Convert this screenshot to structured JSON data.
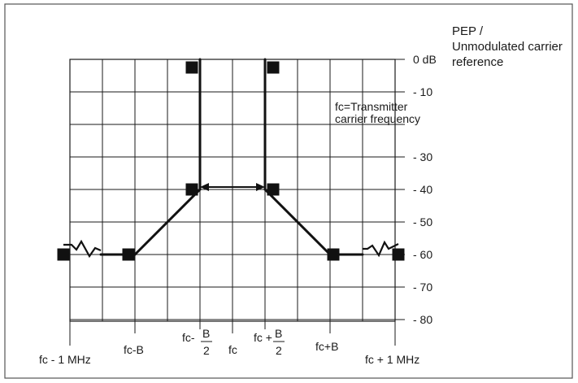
{
  "y_axis": {
    "ticks": [
      {
        "value": 0,
        "label": "0 dB"
      },
      {
        "value": -10,
        "label": "- 10"
      },
      {
        "value": -20,
        "label": ""
      },
      {
        "value": -30,
        "label": "- 30"
      },
      {
        "value": -40,
        "label": "- 40"
      },
      {
        "value": -50,
        "label": "- 50"
      },
      {
        "value": -60,
        "label": "- 60"
      },
      {
        "value": -70,
        "label": "- 70"
      },
      {
        "value": -80,
        "label": "- 80"
      }
    ]
  },
  "legend": {
    "pep_line1": "PEP /",
    "pep_line2": "Unmodulated carrier",
    "pep_line3": "reference",
    "fc_line1": "fc=Transmitter",
    "fc_line2": "carrier frequency"
  },
  "x_labels": {
    "fc_minus_1mhz": "fc - 1 MHz",
    "fc_minus_b": "fc-B",
    "fc_minus_half_b_prefix": "fc-",
    "fc_minus_half_b_num": "B",
    "fc_minus_half_b_den": "2",
    "fc": "fc",
    "fc_plus_half_b_prefix": "fc +",
    "fc_plus_half_b_num": "B",
    "fc_plus_half_b_den": "2",
    "fc_plus_b": "fc+B",
    "fc_plus_1mhz": "fc + 1 MHz"
  },
  "mask_points_db": {
    "far_left": -60,
    "fc_minus_b": -60,
    "fc_minus_half_b_low": -40,
    "fc_minus_half_b_high": 0,
    "fc_plus_half_b_high": 0,
    "fc_plus_half_b_low": -40,
    "fc_plus_b": -60,
    "far_right": -60
  },
  "colors": {
    "line": "#111111",
    "grid": "#1a1a1a",
    "frame": "#555555"
  }
}
